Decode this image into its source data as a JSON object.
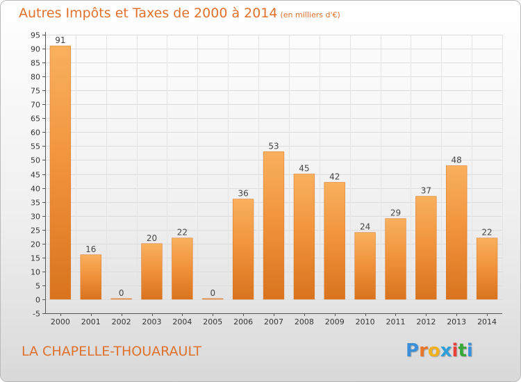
{
  "chart_data": {
    "type": "bar",
    "title": "Autres Impôts et Taxes de 2000 à 2014",
    "subtitle": "(en milliers d'€)",
    "categories": [
      "2000",
      "2001",
      "2002",
      "2003",
      "2004",
      "2005",
      "2006",
      "2007",
      "2008",
      "2009",
      "2010",
      "2011",
      "2012",
      "2013",
      "2014"
    ],
    "values": [
      91,
      16,
      0,
      20,
      22,
      0,
      36,
      53,
      45,
      42,
      24,
      29,
      37,
      48,
      22
    ],
    "ylim": [
      -5,
      95
    ],
    "yticks": [
      -5,
      0,
      5,
      10,
      15,
      20,
      25,
      30,
      35,
      40,
      45,
      50,
      55,
      60,
      65,
      70,
      75,
      80,
      85,
      90,
      95
    ],
    "grid": true,
    "bar_color": "#f0913a",
    "bar_color_light": "#f9b05e",
    "bar_color_dark": "#d9731e"
  },
  "footer": {
    "location": "LA CHAPELLE-THOUARAULT",
    "brand": [
      "P",
      "r",
      "o",
      "x",
      "i",
      "t",
      "i"
    ],
    "brand_colors": [
      "#3a8fd8",
      "#e8762a",
      "#f2b11c",
      "#2e9fd8",
      "#e8403a",
      "#39a83a",
      "#3a8fd8"
    ]
  }
}
